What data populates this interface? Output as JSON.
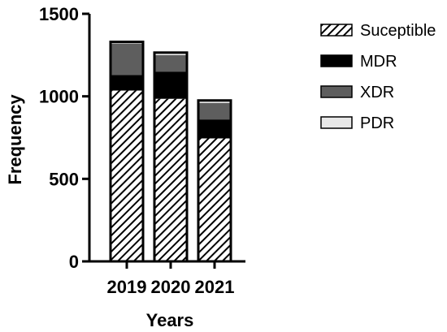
{
  "chart_data": {
    "type": "bar",
    "stacked": true,
    "categories": [
      "2019",
      "2020",
      "2021"
    ],
    "series": [
      {
        "name": "Suceptible",
        "values": [
          1035,
          985,
          745
        ],
        "fill": "hatch"
      },
      {
        "name": "MDR",
        "values": [
          95,
          165,
          115
        ],
        "fill": "#000000"
      },
      {
        "name": "XDR",
        "values": [
          190,
          100,
          100
        ],
        "fill": "#5e5e5e"
      },
      {
        "name": "PDR",
        "values": [
          10,
          15,
          15
        ],
        "fill": "#e8e8e8"
      }
    ],
    "title": "",
    "xlabel": "Years",
    "ylabel": "Frequency",
    "ylim": [
      0,
      1500
    ],
    "yticks": [
      0,
      500,
      1000,
      1500
    ],
    "grid": false,
    "legend_position": "right"
  }
}
